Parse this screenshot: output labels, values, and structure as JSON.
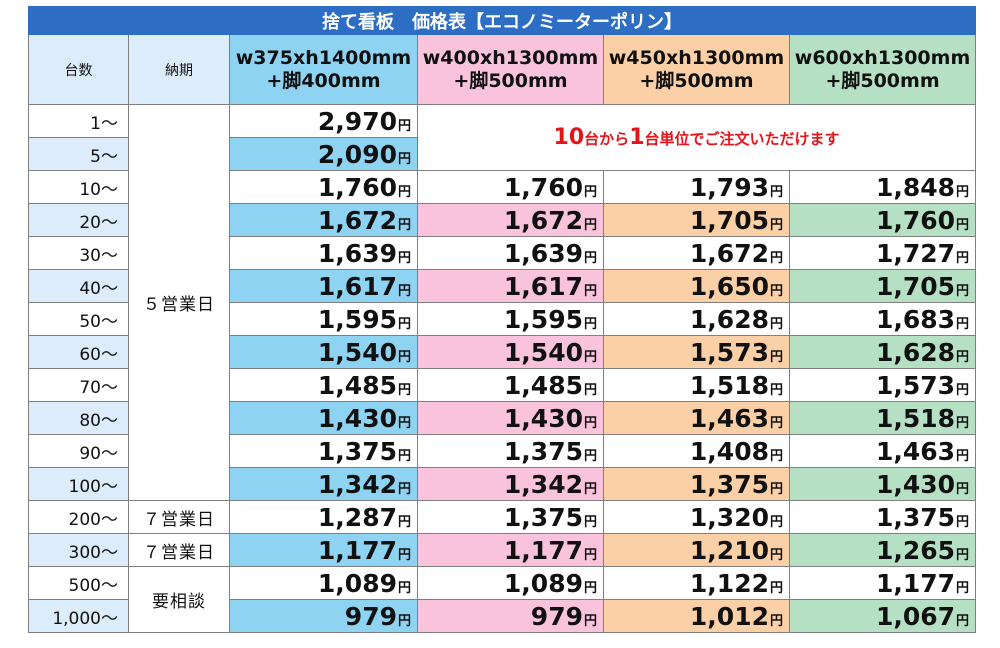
{
  "title": "捨て看板　価格表【エコノミーターポリン】",
  "headers": {
    "qty": "台数",
    "lead": "納期"
  },
  "sizes": [
    {
      "line1": "w375xh1400mm",
      "line2": "+脚400mm",
      "color": "#8fd3f3"
    },
    {
      "line1": "w400xh1300mm",
      "line2": "+脚500mm",
      "color": "#f9c4db"
    },
    {
      "line1": "w450xh1300mm",
      "line2": "+脚500mm",
      "color": "#fcd0a6"
    },
    {
      "line1": "w600xh1300mm",
      "line2": "+脚500mm",
      "color": "#b6e0c4"
    }
  ],
  "yen": "円",
  "notice": {
    "p1": "10",
    "p2": "台から",
    "p3": "1",
    "p4": "台単位でご注文いただけます",
    "color": "#e4141b"
  },
  "lead_times": {
    "g1": "５営業日",
    "g2": "７営業日",
    "g3": "７営業日",
    "g4": "要相談"
  },
  "rows": [
    {
      "qty": "1〜",
      "prices": [
        "2,970"
      ]
    },
    {
      "qty": "5〜",
      "prices": [
        "2,090"
      ]
    },
    {
      "qty": "10〜",
      "prices": [
        "1,760",
        "1,760",
        "1,793",
        "1,848"
      ]
    },
    {
      "qty": "20〜",
      "prices": [
        "1,672",
        "1,672",
        "1,705",
        "1,760"
      ]
    },
    {
      "qty": "30〜",
      "prices": [
        "1,639",
        "1,639",
        "1,672",
        "1,727"
      ]
    },
    {
      "qty": "40〜",
      "prices": [
        "1,617",
        "1,617",
        "1,650",
        "1,705"
      ]
    },
    {
      "qty": "50〜",
      "prices": [
        "1,595",
        "1,595",
        "1,628",
        "1,683"
      ]
    },
    {
      "qty": "60〜",
      "prices": [
        "1,540",
        "1,540",
        "1,573",
        "1,628"
      ]
    },
    {
      "qty": "70〜",
      "prices": [
        "1,485",
        "1,485",
        "1,518",
        "1,573"
      ]
    },
    {
      "qty": "80〜",
      "prices": [
        "1,430",
        "1,430",
        "1,463",
        "1,518"
      ]
    },
    {
      "qty": "90〜",
      "prices": [
        "1,375",
        "1,375",
        "1,408",
        "1,463"
      ]
    },
    {
      "qty": "100〜",
      "prices": [
        "1,342",
        "1,342",
        "1,375",
        "1,430"
      ]
    },
    {
      "qty": "200〜",
      "prices": [
        "1,287",
        "1,375",
        "1,320",
        "1,375"
      ]
    },
    {
      "qty": "300〜",
      "prices": [
        "1,177",
        "1,177",
        "1,210",
        "1,265"
      ]
    },
    {
      "qty": "500〜",
      "prices": [
        "1,089",
        "1,089",
        "1,122",
        "1,177"
      ]
    },
    {
      "qty": "1,000〜",
      "prices": [
        "979",
        "979",
        "1,012",
        "1,067"
      ]
    }
  ]
}
